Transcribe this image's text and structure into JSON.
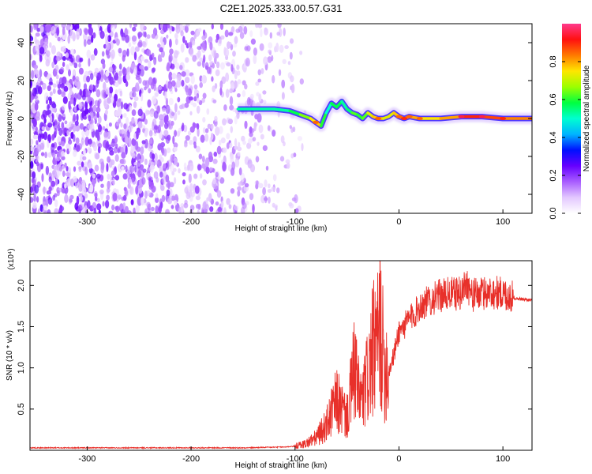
{
  "title": "C2E1.2025.333.00.57.G31",
  "colorbar": {
    "label": "Normalized spectral amplitude",
    "ticks": [
      0.0,
      0.2,
      0.4,
      0.6,
      0.8
    ],
    "tick_labels": [
      "0.0",
      "0.2",
      "0.4",
      "0.6",
      "0.8"
    ],
    "range": [
      0,
      1
    ],
    "colormap": [
      "#ffffff",
      "#e3c8ff",
      "#a85cff",
      "#6600ff",
      "#0010ff",
      "#00b4ff",
      "#00ffd0",
      "#00ff40",
      "#9cff00",
      "#ffe600",
      "#ff7a00",
      "#ff1010",
      "#ff3a8c"
    ]
  },
  "chart_data": [
    {
      "type": "heatmap",
      "xlabel": "Height of straight line (km)",
      "ylabel": "Frequency (Hz)",
      "xlim": [
        -355,
        128
      ],
      "ylim": [
        -50,
        50
      ],
      "x_ticks": [
        -300,
        -200,
        -100,
        0,
        100
      ],
      "x_tick_labels": [
        "-300",
        "-200",
        "-100",
        "0",
        "100"
      ],
      "y_ticks": [
        -40,
        -20,
        0,
        20,
        40
      ],
      "y_tick_labels": [
        "-40",
        "-20",
        "0",
        "20",
        "40"
      ],
      "noise_region": {
        "x_range": [
          -355,
          -100
        ],
        "y_range": [
          -50,
          50
        ]
      },
      "ridge": {
        "x": [
          -155,
          -140,
          -120,
          -105,
          -95,
          -85,
          -80,
          -75,
          -70,
          -65,
          -60,
          -55,
          -50,
          -45,
          -40,
          -35,
          -30,
          -25,
          -20,
          -15,
          -10,
          -5,
          0,
          5,
          10,
          20,
          40,
          60,
          80,
          100,
          128
        ],
        "y": [
          5,
          5,
          5,
          4,
          2,
          0,
          -2,
          -4,
          3,
          8,
          6,
          9,
          5,
          3,
          2,
          0,
          3,
          1,
          0,
          0,
          1,
          3,
          1,
          0,
          1,
          0,
          0,
          1,
          1,
          0,
          0
        ],
        "amplitude": [
          0.5,
          0.55,
          0.5,
          0.55,
          0.6,
          0.7,
          0.8,
          0.75,
          0.45,
          0.55,
          0.6,
          0.55,
          0.5,
          0.6,
          0.65,
          0.55,
          0.7,
          0.75,
          0.8,
          0.75,
          0.7,
          0.75,
          0.8,
          0.85,
          0.8,
          0.8,
          0.7,
          0.9,
          0.9,
          0.85,
          0.8
        ]
      }
    },
    {
      "type": "line",
      "xlabel": "Height of straight line (km)",
      "ylabel": "SNR (10 * v/v)",
      "y_multiplier": "(x10⁴)",
      "xlim": [
        -355,
        128
      ],
      "ylim": [
        0,
        2.3
      ],
      "x_ticks": [
        -300,
        -200,
        -100,
        0,
        100
      ],
      "x_tick_labels": [
        "-300",
        "-200",
        "-100",
        "0",
        "100"
      ],
      "y_ticks": [
        0.5,
        1.0,
        1.5,
        2.0
      ],
      "y_tick_labels": [
        "0.5",
        "1.0",
        "1.5",
        "2.0"
      ],
      "color": "#e8302a",
      "series": [
        {
          "x": [
            -355,
            -300,
            -250,
            -200,
            -150,
            -110,
            -100,
            -90,
            -80,
            -70,
            -65,
            -60,
            -55,
            -50,
            -45,
            -42,
            -40,
            -35,
            -30,
            -25,
            -20,
            -18,
            -15,
            -10,
            -5,
            0,
            5,
            10,
            15,
            20,
            30,
            40,
            50,
            60,
            65,
            70,
            80,
            90,
            100,
            110,
            120,
            128
          ],
          "y": [
            0.03,
            0.03,
            0.03,
            0.03,
            0.03,
            0.04,
            0.05,
            0.08,
            0.15,
            0.3,
            0.45,
            0.6,
            0.5,
            0.4,
            0.8,
            1.05,
            0.7,
            0.6,
            0.9,
            1.2,
            1.3,
            1.6,
            1.1,
            0.95,
            1.15,
            1.45,
            1.5,
            1.6,
            1.65,
            1.75,
            1.82,
            1.88,
            1.9,
            1.9,
            2.05,
            1.88,
            1.9,
            1.92,
            1.9,
            1.85,
            1.83,
            1.82
          ]
        }
      ]
    }
  ]
}
